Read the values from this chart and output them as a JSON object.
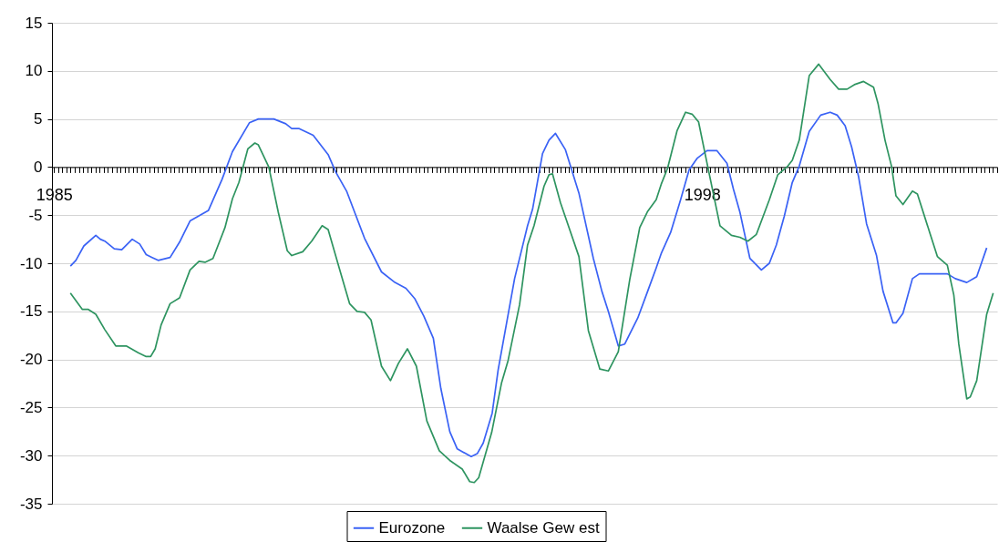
{
  "chart_data": {
    "type": "line",
    "legend": "bottom",
    "grid": "y",
    "xlim": [
      1984.96,
      2003.92
    ],
    "ylim": [
      -35,
      15
    ],
    "yticks": [
      -35,
      -30,
      -25,
      -20,
      -15,
      -10,
      -5,
      0,
      5,
      10,
      15
    ],
    "xticks": [
      {
        "value": 1985,
        "label": "1985"
      },
      {
        "value": 1985.083,
        "label": null
      },
      {
        "value": 1985.167,
        "label": null
      },
      {
        "value": 1985.25,
        "label": null
      },
      {
        "value": 1985.333,
        "label": null
      },
      {
        "value": 1985.417,
        "label": null
      },
      {
        "value": 1985.5,
        "label": null
      },
      {
        "value": 1985.583,
        "label": null
      },
      {
        "value": 1985.667,
        "label": null
      },
      {
        "value": 1985.75,
        "label": null
      },
      {
        "value": 1985.833,
        "label": null
      },
      {
        "value": 1985.917,
        "label": null
      },
      {
        "value": 1986,
        "label": null
      },
      {
        "value": 1986.083,
        "label": null
      },
      {
        "value": 1986.167,
        "label": null
      },
      {
        "value": 1986.25,
        "label": null
      },
      {
        "value": 1986.333,
        "label": null
      },
      {
        "value": 1986.417,
        "label": null
      },
      {
        "value": 1986.5,
        "label": null
      },
      {
        "value": 1986.583,
        "label": null
      },
      {
        "value": 1986.667,
        "label": null
      },
      {
        "value": 1986.75,
        "label": null
      },
      {
        "value": 1986.833,
        "label": null
      },
      {
        "value": 1986.917,
        "label": null
      },
      {
        "value": 1987,
        "label": null
      },
      {
        "value": 1987.083,
        "label": null
      },
      {
        "value": 1987.167,
        "label": null
      },
      {
        "value": 1987.25,
        "label": null
      },
      {
        "value": 1987.333,
        "label": null
      },
      {
        "value": 1987.417,
        "label": null
      },
      {
        "value": 1987.5,
        "label": null
      },
      {
        "value": 1987.583,
        "label": null
      },
      {
        "value": 1987.667,
        "label": null
      },
      {
        "value": 1987.75,
        "label": null
      },
      {
        "value": 1987.833,
        "label": null
      },
      {
        "value": 1987.917,
        "label": null
      },
      {
        "value": 1988,
        "label": null
      },
      {
        "value": 1988.083,
        "label": null
      },
      {
        "value": 1988.167,
        "label": null
      },
      {
        "value": 1988.25,
        "label": null
      },
      {
        "value": 1988.333,
        "label": null
      },
      {
        "value": 1988.417,
        "label": null
      },
      {
        "value": 1988.5,
        "label": null
      },
      {
        "value": 1988.583,
        "label": null
      },
      {
        "value": 1988.667,
        "label": null
      },
      {
        "value": 1988.75,
        "label": null
      },
      {
        "value": 1988.833,
        "label": null
      },
      {
        "value": 1988.917,
        "label": null
      },
      {
        "value": 1989,
        "label": null
      },
      {
        "value": 1989.083,
        "label": null
      },
      {
        "value": 1989.167,
        "label": null
      },
      {
        "value": 1989.25,
        "label": null
      },
      {
        "value": 1989.333,
        "label": null
      },
      {
        "value": 1989.417,
        "label": null
      },
      {
        "value": 1989.5,
        "label": null
      },
      {
        "value": 1989.583,
        "label": null
      },
      {
        "value": 1989.667,
        "label": null
      },
      {
        "value": 1989.75,
        "label": null
      },
      {
        "value": 1989.833,
        "label": null
      },
      {
        "value": 1989.917,
        "label": null
      },
      {
        "value": 1990,
        "label": null
      },
      {
        "value": 1990.083,
        "label": null
      },
      {
        "value": 1990.167,
        "label": null
      },
      {
        "value": 1990.25,
        "label": null
      },
      {
        "value": 1990.333,
        "label": null
      },
      {
        "value": 1990.417,
        "label": null
      },
      {
        "value": 1990.5,
        "label": null
      },
      {
        "value": 1990.583,
        "label": null
      },
      {
        "value": 1990.667,
        "label": null
      },
      {
        "value": 1990.75,
        "label": null
      },
      {
        "value": 1990.833,
        "label": null
      },
      {
        "value": 1990.917,
        "label": null
      },
      {
        "value": 1991,
        "label": null
      },
      {
        "value": 1991.083,
        "label": null
      },
      {
        "value": 1991.167,
        "label": null
      },
      {
        "value": 1991.25,
        "label": null
      },
      {
        "value": 1991.333,
        "label": null
      },
      {
        "value": 1991.417,
        "label": null
      },
      {
        "value": 1991.5,
        "label": null
      },
      {
        "value": 1991.583,
        "label": null
      },
      {
        "value": 1991.667,
        "label": null
      },
      {
        "value": 1991.75,
        "label": null
      },
      {
        "value": 1991.833,
        "label": null
      },
      {
        "value": 1991.917,
        "label": null
      },
      {
        "value": 1992,
        "label": null
      },
      {
        "value": 1992.083,
        "label": null
      },
      {
        "value": 1992.167,
        "label": null
      },
      {
        "value": 1992.25,
        "label": null
      },
      {
        "value": 1992.333,
        "label": null
      },
      {
        "value": 1992.417,
        "label": null
      },
      {
        "value": 1992.5,
        "label": null
      },
      {
        "value": 1992.583,
        "label": null
      },
      {
        "value": 1992.667,
        "label": null
      },
      {
        "value": 1992.75,
        "label": null
      },
      {
        "value": 1992.833,
        "label": null
      },
      {
        "value": 1992.917,
        "label": null
      },
      {
        "value": 1993,
        "label": null
      },
      {
        "value": 1993.083,
        "label": null
      },
      {
        "value": 1993.167,
        "label": null
      },
      {
        "value": 1993.25,
        "label": null
      },
      {
        "value": 1993.333,
        "label": null
      },
      {
        "value": 1993.417,
        "label": null
      },
      {
        "value": 1993.5,
        "label": null
      },
      {
        "value": 1993.583,
        "label": null
      },
      {
        "value": 1993.667,
        "label": null
      },
      {
        "value": 1993.75,
        "label": null
      },
      {
        "value": 1993.833,
        "label": null
      },
      {
        "value": 1993.917,
        "label": null
      },
      {
        "value": 1994,
        "label": null
      },
      {
        "value": 1994.083,
        "label": null
      },
      {
        "value": 1994.167,
        "label": null
      },
      {
        "value": 1994.25,
        "label": null
      },
      {
        "value": 1994.333,
        "label": null
      },
      {
        "value": 1994.417,
        "label": null
      },
      {
        "value": 1994.5,
        "label": null
      },
      {
        "value": 1994.583,
        "label": null
      },
      {
        "value": 1994.667,
        "label": null
      },
      {
        "value": 1994.75,
        "label": null
      },
      {
        "value": 1994.833,
        "label": null
      },
      {
        "value": 1994.917,
        "label": null
      },
      {
        "value": 1995,
        "label": null
      },
      {
        "value": 1995.083,
        "label": null
      },
      {
        "value": 1995.167,
        "label": null
      },
      {
        "value": 1995.25,
        "label": null
      },
      {
        "value": 1995.333,
        "label": null
      },
      {
        "value": 1995.417,
        "label": null
      },
      {
        "value": 1995.5,
        "label": null
      },
      {
        "value": 1995.583,
        "label": null
      },
      {
        "value": 1995.667,
        "label": null
      },
      {
        "value": 1995.75,
        "label": null
      },
      {
        "value": 1995.833,
        "label": null
      },
      {
        "value": 1995.917,
        "label": null
      },
      {
        "value": 1996,
        "label": null
      },
      {
        "value": 1996.083,
        "label": null
      },
      {
        "value": 1996.167,
        "label": null
      },
      {
        "value": 1996.25,
        "label": null
      },
      {
        "value": 1996.333,
        "label": null
      },
      {
        "value": 1996.417,
        "label": null
      },
      {
        "value": 1996.5,
        "label": null
      },
      {
        "value": 1996.583,
        "label": null
      },
      {
        "value": 1996.667,
        "label": null
      },
      {
        "value": 1996.75,
        "label": null
      },
      {
        "value": 1996.833,
        "label": null
      },
      {
        "value": 1996.917,
        "label": null
      },
      {
        "value": 1997,
        "label": null
      },
      {
        "value": 1997.083,
        "label": null
      },
      {
        "value": 1997.167,
        "label": null
      },
      {
        "value": 1997.25,
        "label": null
      },
      {
        "value": 1997.333,
        "label": null
      },
      {
        "value": 1997.417,
        "label": null
      },
      {
        "value": 1997.5,
        "label": null
      },
      {
        "value": 1997.583,
        "label": null
      },
      {
        "value": 1997.667,
        "label": null
      },
      {
        "value": 1997.75,
        "label": null
      },
      {
        "value": 1997.833,
        "label": null
      },
      {
        "value": 1997.917,
        "label": null
      },
      {
        "value": 1998,
        "label": "1998"
      },
      {
        "value": 1998.083,
        "label": null
      },
      {
        "value": 1998.167,
        "label": null
      },
      {
        "value": 1998.25,
        "label": null
      },
      {
        "value": 1998.333,
        "label": null
      },
      {
        "value": 1998.417,
        "label": null
      },
      {
        "value": 1998.5,
        "label": null
      },
      {
        "value": 1998.583,
        "label": null
      },
      {
        "value": 1998.667,
        "label": null
      },
      {
        "value": 1998.75,
        "label": null
      },
      {
        "value": 1998.833,
        "label": null
      },
      {
        "value": 1998.917,
        "label": null
      },
      {
        "value": 1999,
        "label": null
      },
      {
        "value": 1999.083,
        "label": null
      },
      {
        "value": 1999.167,
        "label": null
      },
      {
        "value": 1999.25,
        "label": null
      },
      {
        "value": 1999.333,
        "label": null
      },
      {
        "value": 1999.417,
        "label": null
      },
      {
        "value": 1999.5,
        "label": null
      },
      {
        "value": 1999.583,
        "label": null
      },
      {
        "value": 1999.667,
        "label": null
      },
      {
        "value": 1999.75,
        "label": null
      },
      {
        "value": 1999.833,
        "label": null
      },
      {
        "value": 1999.917,
        "label": null
      },
      {
        "value": 2000,
        "label": null
      },
      {
        "value": 2000.083,
        "label": null
      },
      {
        "value": 2000.167,
        "label": null
      },
      {
        "value": 2000.25,
        "label": null
      },
      {
        "value": 2000.333,
        "label": null
      },
      {
        "value": 2000.417,
        "label": null
      },
      {
        "value": 2000.5,
        "label": null
      },
      {
        "value": 2000.583,
        "label": null
      },
      {
        "value": 2000.667,
        "label": null
      },
      {
        "value": 2000.75,
        "label": null
      },
      {
        "value": 2000.833,
        "label": null
      },
      {
        "value": 2000.917,
        "label": null
      },
      {
        "value": 2001,
        "label": null
      },
      {
        "value": 2001.083,
        "label": null
      },
      {
        "value": 2001.167,
        "label": null
      },
      {
        "value": 2001.25,
        "label": null
      },
      {
        "value": 2001.333,
        "label": null
      },
      {
        "value": 2001.417,
        "label": null
      },
      {
        "value": 2001.5,
        "label": null
      },
      {
        "value": 2001.583,
        "label": null
      },
      {
        "value": 2001.667,
        "label": null
      },
      {
        "value": 2001.75,
        "label": null
      },
      {
        "value": 2001.833,
        "label": null
      },
      {
        "value": 2001.917,
        "label": null
      },
      {
        "value": 2002,
        "label": null
      },
      {
        "value": 2002.083,
        "label": null
      },
      {
        "value": 2002.167,
        "label": null
      },
      {
        "value": 2002.25,
        "label": null
      },
      {
        "value": 2002.333,
        "label": null
      },
      {
        "value": 2002.417,
        "label": null
      },
      {
        "value": 2002.5,
        "label": null
      },
      {
        "value": 2002.583,
        "label": null
      },
      {
        "value": 2002.667,
        "label": null
      },
      {
        "value": 2002.75,
        "label": null
      },
      {
        "value": 2002.833,
        "label": null
      },
      {
        "value": 2002.917,
        "label": null
      },
      {
        "value": 2003,
        "label": null
      },
      {
        "value": 2003.083,
        "label": null
      },
      {
        "value": 2003.167,
        "label": null
      },
      {
        "value": 2003.25,
        "label": null
      },
      {
        "value": 2003.333,
        "label": null
      },
      {
        "value": 2003.417,
        "label": null
      },
      {
        "value": 2003.5,
        "label": null
      },
      {
        "value": 2003.583,
        "label": null
      },
      {
        "value": 2003.667,
        "label": null
      },
      {
        "value": 2003.75,
        "label": null
      },
      {
        "value": 2003.833,
        "label": null
      },
      {
        "value": 2003.917,
        "label": null
      }
    ],
    "series": [
      {
        "name": "Eurozone",
        "color": "#3a62f5",
        "x": [
          1985.33,
          1985.44,
          1985.6,
          1985.84,
          1985.93,
          1986.02,
          1986.21,
          1986.36,
          1986.57,
          1986.72,
          1986.85,
          1986.97,
          1987.09,
          1987.33,
          1987.52,
          1987.73,
          1988.1,
          1988.37,
          1988.58,
          1988.92,
          1989.1,
          1989.41,
          1989.65,
          1989.77,
          1989.92,
          1990.2,
          1990.5,
          1990.65,
          1990.87,
          1991.23,
          1991.57,
          1991.84,
          1992.06,
          1992.24,
          1992.42,
          1992.61,
          1992.76,
          1992.94,
          1993.09,
          1993.37,
          1993.49,
          1993.61,
          1993.79,
          1993.91,
          1994.24,
          1994.5,
          1994.6,
          1994.8,
          1994.93,
          1995.06,
          1995.26,
          1995.53,
          1995.82,
          1995.99,
          1996.12,
          1996.32,
          1996.45,
          1996.71,
          1996.91,
          1997.08,
          1997.18,
          1997.37,
          1997.57,
          1997.74,
          1997.9,
          1998.1,
          1998.3,
          1998.5,
          1998.63,
          1998.76,
          1998.96,
          1999.19,
          1999.35,
          1999.49,
          1999.65,
          1999.81,
          1999.95,
          2000.15,
          2000.38,
          2000.57,
          2000.71,
          2000.87,
          2001.0,
          2001.14,
          2001.3,
          2001.5,
          2001.63,
          2001.83,
          2001.89,
          2002.03,
          2002.22,
          2002.36,
          2002.92,
          2003.08,
          2003.31,
          2003.51,
          2003.71
        ],
        "values": [
          -10.3,
          -9.7,
          -8.2,
          -7.1,
          -7.5,
          -7.7,
          -8.5,
          -8.6,
          -7.5,
          -8.0,
          -9.1,
          -9.4,
          -9.7,
          -9.4,
          -7.8,
          -5.6,
          -4.5,
          -1.3,
          1.6,
          4.6,
          5.0,
          5.0,
          4.5,
          4.0,
          4.0,
          3.3,
          1.3,
          -0.5,
          -2.5,
          -7.4,
          -10.9,
          -12.0,
          -12.6,
          -13.7,
          -15.5,
          -17.8,
          -23.0,
          -27.5,
          -29.3,
          -30.1,
          -29.8,
          -28.7,
          -25.6,
          -21.1,
          -11.6,
          -6.1,
          -4.4,
          1.4,
          2.8,
          3.5,
          1.8,
          -2.7,
          -9.5,
          -12.9,
          -15.0,
          -18.6,
          -18.4,
          -15.7,
          -12.9,
          -10.5,
          -9.0,
          -6.8,
          -3.4,
          -0.3,
          0.9,
          1.7,
          1.7,
          0.4,
          -2.3,
          -4.7,
          -9.5,
          -10.7,
          -10.0,
          -8.1,
          -5.1,
          -1.6,
          0.1,
          3.7,
          5.4,
          5.7,
          5.4,
          4.3,
          2.1,
          -1.0,
          -5.9,
          -9.2,
          -12.9,
          -16.2,
          -16.2,
          -15.2,
          -11.6,
          -11.1,
          -11.1,
          -11.6,
          -12.0,
          -11.4,
          -8.4
        ]
      },
      {
        "name": "Waalse Gew est",
        "color": "#2e9460",
        "x": [
          1985.33,
          1985.57,
          1985.69,
          1985.84,
          1986.02,
          1986.24,
          1986.45,
          1986.69,
          1986.85,
          1986.94,
          1987.03,
          1987.15,
          1987.33,
          1987.52,
          1987.73,
          1987.91,
          1988.03,
          1988.19,
          1988.43,
          1988.58,
          1988.71,
          1988.89,
          1989.03,
          1989.1,
          1989.31,
          1989.5,
          1989.68,
          1989.77,
          1989.99,
          1990.17,
          1990.38,
          1990.5,
          1990.75,
          1990.93,
          1991.08,
          1991.23,
          1991.36,
          1991.57,
          1991.75,
          1991.91,
          1992.09,
          1992.27,
          1992.48,
          1992.73,
          1992.94,
          1993.19,
          1993.34,
          1993.43,
          1993.52,
          1993.78,
          1993.98,
          1994.11,
          1994.34,
          1994.5,
          1994.63,
          1994.83,
          1994.93,
          1995.0,
          1995.16,
          1995.53,
          1995.72,
          1995.95,
          1996.12,
          1996.32,
          1996.55,
          1996.75,
          1996.91,
          1997.08,
          1997.18,
          1997.31,
          1997.5,
          1997.67,
          1997.8,
          1997.93,
          1998.1,
          1998.36,
          1998.59,
          1998.76,
          1998.92,
          1999.09,
          1999.35,
          1999.52,
          1999.72,
          1999.81,
          1999.95,
          2000.15,
          2000.34,
          2000.57,
          2000.74,
          2000.91,
          2001.07,
          2001.24,
          2001.44,
          2001.53,
          2001.67,
          2001.8,
          2001.89,
          2002.03,
          2002.22,
          2002.32,
          2002.72,
          2002.92,
          2003.05,
          2003.15,
          2003.31,
          2003.38,
          2003.51,
          2003.71,
          2003.84
        ],
        "values": [
          -13.1,
          -14.8,
          -14.8,
          -15.3,
          -16.9,
          -18.6,
          -18.6,
          -19.3,
          -19.7,
          -19.7,
          -18.9,
          -16.4,
          -14.2,
          -13.6,
          -10.7,
          -9.8,
          -9.9,
          -9.5,
          -6.3,
          -3.3,
          -1.6,
          1.9,
          2.5,
          2.3,
          0.0,
          -4.7,
          -8.7,
          -9.2,
          -8.8,
          -7.7,
          -6.1,
          -6.5,
          -11.0,
          -14.2,
          -15.0,
          -15.1,
          -15.9,
          -20.7,
          -22.2,
          -20.4,
          -18.9,
          -20.7,
          -26.4,
          -29.5,
          -30.5,
          -31.4,
          -32.7,
          -32.8,
          -32.3,
          -27.6,
          -22.4,
          -20.1,
          -14.3,
          -8.1,
          -6.1,
          -2.0,
          -0.8,
          -0.7,
          -3.7,
          -9.3,
          -17.0,
          -21.0,
          -21.2,
          -19.2,
          -11.7,
          -6.3,
          -4.6,
          -3.4,
          -1.8,
          -0.1,
          3.8,
          5.7,
          5.5,
          4.7,
          0.4,
          -6.1,
          -7.1,
          -7.3,
          -7.7,
          -7.0,
          -3.4,
          -0.8,
          0.1,
          0.7,
          2.8,
          9.5,
          10.7,
          9.1,
          8.1,
          8.1,
          8.6,
          8.9,
          8.3,
          6.6,
          2.8,
          0.1,
          -3.0,
          -3.9,
          -2.5,
          -2.8,
          -9.3,
          -10.2,
          -13.3,
          -18.4,
          -24.1,
          -23.9,
          -22.2,
          -15.3,
          -13.1
        ]
      }
    ]
  }
}
